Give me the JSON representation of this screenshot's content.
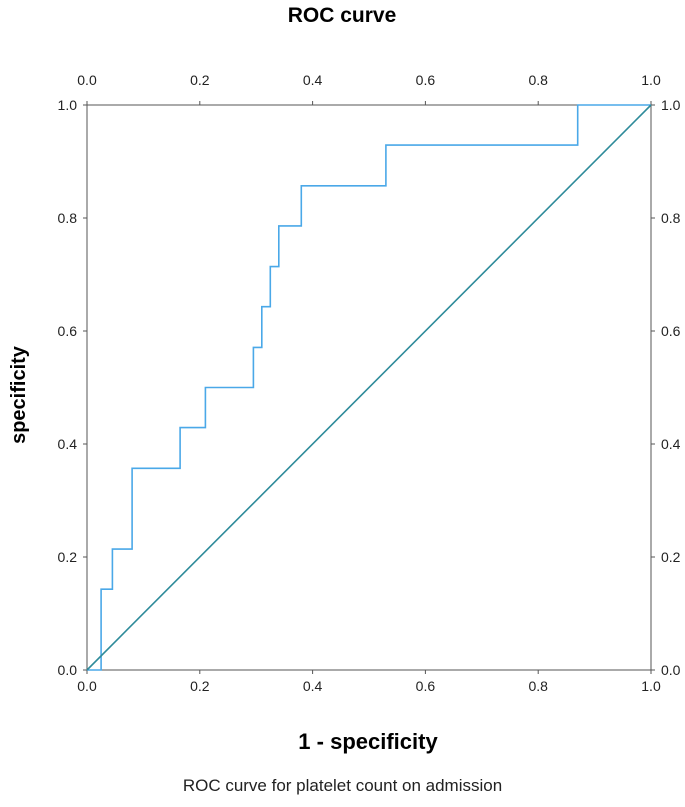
{
  "chart_data": {
    "type": "line",
    "title": "ROC curve",
    "xlabel": "1 - specificity",
    "ylabel": "specificity",
    "xlim": [
      0,
      1
    ],
    "ylim": [
      0,
      1
    ],
    "x_ticks": [
      "0.0",
      "0.2",
      "0.4",
      "0.6",
      "0.8",
      "1.0"
    ],
    "y_ticks": [
      "0.0",
      "0.2",
      "0.4",
      "0.6",
      "0.8",
      "1.0"
    ],
    "grid": false,
    "series": [
      {
        "color": "#4aa8e8",
        "x": [
          0.0,
          0.025,
          0.025,
          0.045,
          0.045,
          0.08,
          0.08,
          0.165,
          0.165,
          0.21,
          0.21,
          0.295,
          0.295,
          0.31,
          0.31,
          0.325,
          0.325,
          0.34,
          0.34,
          0.38,
          0.38,
          0.395,
          0.395,
          0.53,
          0.53,
          0.55,
          0.55,
          0.87,
          0.87,
          0.89,
          0.89,
          1.0
        ],
        "y": [
          0.0,
          0.0,
          0.143,
          0.143,
          0.214,
          0.214,
          0.357,
          0.357,
          0.429,
          0.429,
          0.5,
          0.5,
          0.571,
          0.571,
          0.643,
          0.643,
          0.714,
          0.714,
          0.786,
          0.786,
          0.857,
          0.857,
          0.857,
          0.857,
          0.929,
          0.929,
          0.929,
          0.929,
          1.0,
          1.0,
          1.0,
          1.0
        ]
      },
      {
        "color": "#2e8b9a",
        "x": [
          0.0,
          1.0
        ],
        "y": [
          0.0,
          1.0
        ]
      }
    ]
  },
  "caption": "ROC curve for platelet count on admission"
}
